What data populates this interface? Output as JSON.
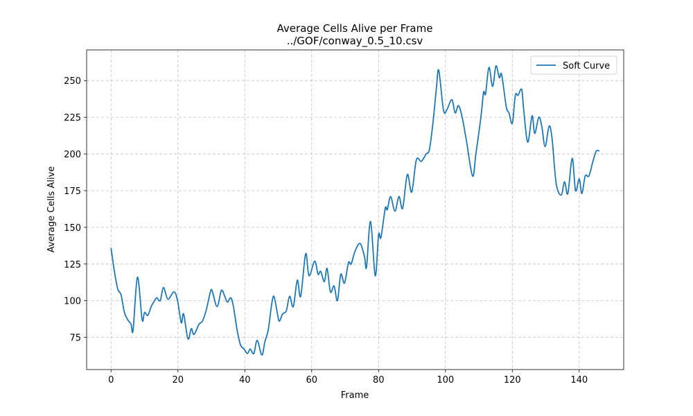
{
  "chart_data": {
    "type": "line",
    "title": "Average Cells Alive per Frame",
    "subtitle": "../GOF/conway_0.5_10.csv",
    "x_label": "Frame",
    "y_label": "Average Cells Alive",
    "xlim": [
      -7.3,
      153.3
    ],
    "ylim": [
      53.1,
      270.9
    ],
    "xticks": [
      0,
      20,
      40,
      60,
      80,
      100,
      120,
      140
    ],
    "yticks": [
      75,
      100,
      125,
      150,
      175,
      200,
      225,
      250
    ],
    "grid": true,
    "legend": "upper right",
    "x": [
      0,
      1,
      2,
      3,
      4,
      5,
      6,
      6.6,
      7.9,
      9.3,
      10,
      11,
      12,
      13,
      13.7,
      14.7,
      15.7,
      17,
      18.8,
      19.9,
      21,
      21.7,
      23,
      24,
      24.8,
      26.3,
      27.3,
      28.4,
      29.6,
      30.2,
      31.7,
      33,
      34,
      34.8,
      35.8,
      36.6,
      37.7,
      38.7,
      39.8,
      40.8,
      41.6,
      42.7,
      43.7,
      45.1,
      46,
      47,
      48,
      48.7,
      49.7,
      50.3,
      51.3,
      52.4,
      53.4,
      54.5,
      55.7,
      56.7,
      58.2,
      59.2,
      60.9,
      61.9,
      62.7,
      63.8,
      64.6,
      65.6,
      66.7,
      67.7,
      68.7,
      69.8,
      71,
      71.8,
      73,
      74.5,
      75.8,
      76.4,
      77.6,
      79,
      80,
      80.7,
      82,
      82.6,
      83.6,
      84.9,
      86.1,
      87.2,
      88.6,
      89.9,
      91.3,
      92.8,
      94.2,
      95.2,
      96.3,
      97.3,
      98,
      99.4,
      100.4,
      101.9,
      102.9,
      103.9,
      105,
      106.2,
      108.1,
      109.1,
      110.6,
      111.4,
      112,
      113,
      114.1,
      115.1,
      116.1,
      116.8,
      118.2,
      119,
      120,
      120.9,
      121.7,
      122.8,
      123.4,
      124.6,
      125.9,
      126.7,
      127.9,
      128.8,
      129.8,
      131,
      131.9,
      133.1,
      134.6,
      135.6,
      136.6,
      137.9,
      138.9,
      140,
      140.8,
      141.8,
      142.9,
      144.1,
      145.1,
      146
    ],
    "series": [
      {
        "name": "Soft Curve",
        "color": "#1f77b4",
        "values": [
          136,
          120,
          108,
          104,
          92,
          87,
          84,
          80,
          116,
          87,
          92,
          90,
          96,
          100,
          102,
          100,
          109,
          101,
          106,
          100,
          85,
          91,
          74,
          81,
          77,
          84,
          86,
          93,
          105,
          107,
          96,
          107,
          103,
          99,
          102,
          96,
          80,
          70,
          67,
          64,
          67,
          64,
          73,
          63,
          72,
          80,
          97,
          103,
          92,
          86,
          91,
          93,
          103,
          96,
          114,
          103,
          132,
          117,
          127,
          118,
          120,
          113,
          122,
          106,
          110,
          100,
          118,
          112,
          126,
          125,
          134,
          139,
          130,
          123,
          154,
          117,
          145,
          143,
          163,
          162,
          171,
          161,
          171,
          163,
          186,
          174,
          196,
          195,
          200,
          203,
          222,
          245,
          257,
          230,
          230,
          237,
          228,
          233,
          225,
          210,
          185,
          200,
          225,
          242,
          241,
          259,
          246,
          260,
          252,
          254,
          232,
          228,
          221,
          240,
          240,
          244,
          230,
          208,
          226,
          214,
          225,
          219,
          205,
          219,
          210,
          180,
          172,
          181,
          173,
          197,
          175,
          183,
          173,
          185,
          185,
          195,
          202,
          202
        ]
      }
    ]
  }
}
